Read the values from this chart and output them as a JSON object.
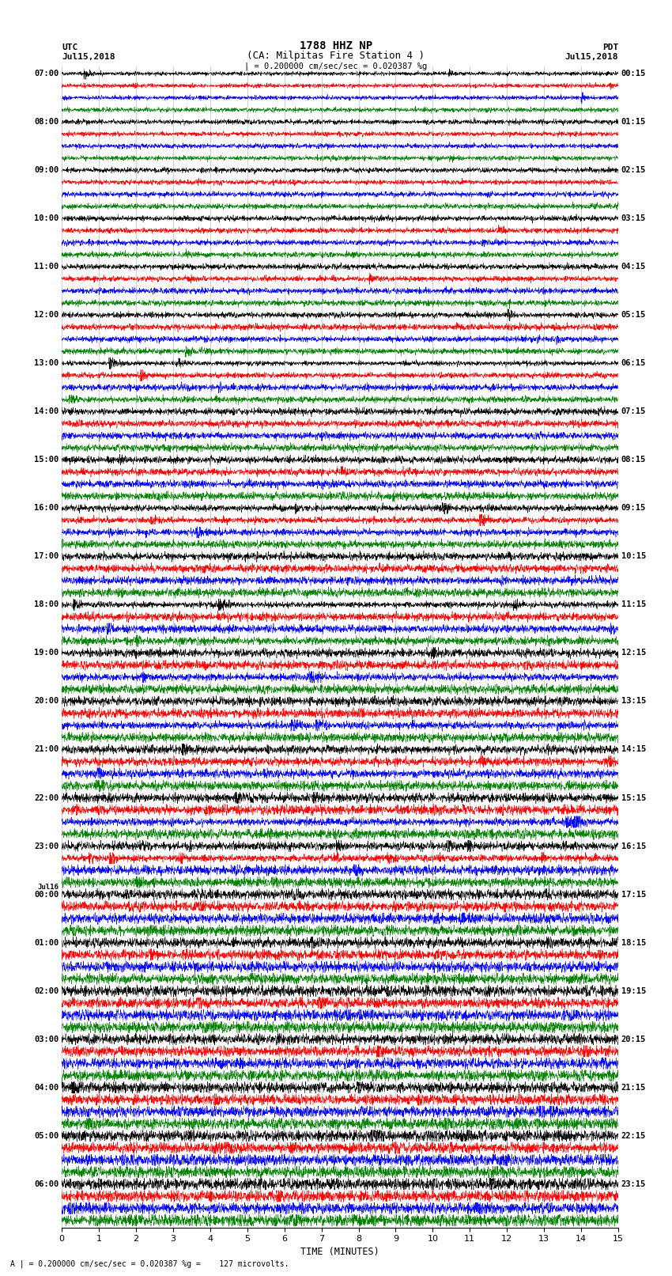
{
  "title_line1": "1788 HHZ NP",
  "title_line2": "(CA: Milpitas Fire Station 4 )",
  "left_label_top": "UTC",
  "left_label_date": "Jul15,2018",
  "right_label_top": "PDT",
  "right_label_date": "Jul15,2018",
  "scale_text": "| = 0.200000 cm/sec/sec = 0.020387 %g",
  "bottom_note": "A | = 0.200000 cm/sec/sec = 0.020387 %g =    127 microvolts.",
  "xlabel": "TIME (MINUTES)",
  "n_rows": 96,
  "colors_cycle": [
    "black",
    "red",
    "blue",
    "green"
  ],
  "fig_width": 8.5,
  "fig_height": 16.13,
  "bg_color": "white",
  "xmin": 0,
  "xmax": 15,
  "left_time_labels": [
    "07:00",
    "",
    "",
    "",
    "08:00",
    "",
    "",
    "",
    "09:00",
    "",
    "",
    "",
    "10:00",
    "",
    "",
    "",
    "11:00",
    "",
    "",
    "",
    "12:00",
    "",
    "",
    "",
    "13:00",
    "",
    "",
    "",
    "14:00",
    "",
    "",
    "",
    "15:00",
    "",
    "",
    "",
    "16:00",
    "",
    "",
    "",
    "17:00",
    "",
    "",
    "",
    "18:00",
    "",
    "",
    "",
    "19:00",
    "",
    "",
    "",
    "20:00",
    "",
    "",
    "",
    "21:00",
    "",
    "",
    "",
    "22:00",
    "",
    "",
    "",
    "23:00",
    "",
    "",
    "",
    "Jul16\n00:00",
    "",
    "",
    "",
    "01:00",
    "",
    "",
    "",
    "02:00",
    "",
    "",
    "",
    "03:00",
    "",
    "",
    "",
    "04:00",
    "",
    "",
    "",
    "05:00",
    "",
    "",
    "",
    "06:00",
    "",
    "",
    ""
  ],
  "right_time_labels": [
    "00:15",
    "",
    "",
    "",
    "01:15",
    "",
    "",
    "",
    "02:15",
    "",
    "",
    "",
    "03:15",
    "",
    "",
    "",
    "04:15",
    "",
    "",
    "",
    "05:15",
    "",
    "",
    "",
    "06:15",
    "",
    "",
    "",
    "07:15",
    "",
    "",
    "",
    "08:15",
    "",
    "",
    "",
    "09:15",
    "",
    "",
    "",
    "10:15",
    "",
    "",
    "",
    "11:15",
    "",
    "",
    "",
    "12:15",
    "",
    "",
    "",
    "13:15",
    "",
    "",
    "",
    "14:15",
    "",
    "",
    "",
    "15:15",
    "",
    "",
    "",
    "16:15",
    "",
    "",
    "",
    "17:15",
    "",
    "",
    "",
    "18:15",
    "",
    "",
    "",
    "19:15",
    "",
    "",
    "",
    "20:15",
    "",
    "",
    "",
    "21:15",
    "",
    "",
    "",
    "22:15",
    "",
    "",
    "",
    "23:15",
    "",
    "",
    ""
  ]
}
